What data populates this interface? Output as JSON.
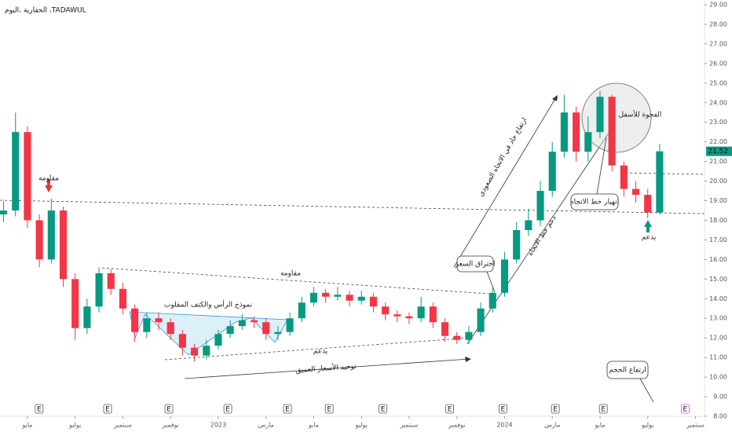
{
  "chart_data": {
    "type": "candlestick",
    "title": "الحفارية ،اليوم ،TADAWUL",
    "x": [
      3,
      3.5,
      4,
      4.5,
      5,
      5.5,
      6,
      6.5,
      7,
      7.5,
      8,
      8.5,
      9,
      9.5,
      10,
      10.5,
      11,
      11.5,
      12,
      12.5,
      13,
      13.5,
      14,
      14.5,
      15,
      15.5,
      16,
      16.5,
      17,
      17.5,
      18,
      18.5,
      19,
      19.5,
      20,
      20.5,
      21,
      21.5,
      22,
      22.5,
      23,
      23.5,
      24,
      24.5,
      25,
      25.5,
      26,
      26.5,
      27,
      27.5,
      28,
      28.5,
      29,
      29.5,
      30,
      30.5
    ],
    "open": [
      18.3,
      18.5,
      22.5,
      18,
      16,
      18.5,
      15,
      12.5,
      13.6,
      15.3,
      14.5,
      13.5,
      12.3,
      13,
      12.8,
      12.2,
      11.5,
      11.1,
      11.6,
      12.2,
      12.6,
      12.9,
      12.8,
      12.2,
      12.3,
      13,
      13.8,
      14.3,
      14.1,
      14.2,
      13.9,
      14.1,
      13.6,
      13.2,
      13.1,
      13,
      13.6,
      12.8,
      12.1,
      11.9,
      12.3,
      13.5,
      14.3,
      16,
      17.5,
      18,
      19.5,
      21.5,
      23.5,
      21.5,
      22.5,
      24.3,
      20.8,
      19.6,
      19.3,
      18.4
    ],
    "high": [
      19,
      23.5,
      22.8,
      18.3,
      19.1,
      18.7,
      15.3,
      14,
      15.6,
      15.5,
      14.8,
      13.7,
      13.3,
      13.3,
      13,
      12.4,
      11.7,
      11.9,
      12.4,
      12.9,
      13.2,
      13.1,
      13,
      12.6,
      13.3,
      14.1,
      14.6,
      14.5,
      14.6,
      14.4,
      14.4,
      14.3,
      13.8,
      13.4,
      13.3,
      14.1,
      13.8,
      13,
      12.3,
      12.6,
      13.8,
      14.6,
      16.4,
      17.9,
      18.6,
      20,
      22,
      24.4,
      23.8,
      23.3,
      24.6,
      24.4,
      21,
      20,
      19.6,
      21.9
    ],
    "low": [
      17.9,
      18.2,
      17.6,
      15.6,
      15.8,
      14.6,
      11.9,
      12.2,
      13.3,
      14.2,
      13.2,
      11.8,
      12,
      12.4,
      11.9,
      11.1,
      10.8,
      10.9,
      11.4,
      12,
      12.4,
      12.5,
      11.9,
      11.9,
      12.1,
      12.8,
      13.6,
      13.8,
      13.9,
      13.6,
      13.7,
      13.3,
      12.9,
      12.8,
      12.7,
      12.8,
      12.5,
      11.8,
      11.7,
      11.7,
      12.1,
      13.3,
      14.1,
      15.8,
      17.2,
      17.7,
      19.2,
      21.2,
      21,
      21,
      22.2,
      20.5,
      19.2,
      18.9,
      18.1,
      18.3
    ],
    "close": [
      18.5,
      22.5,
      18,
      16,
      18.5,
      15,
      12.5,
      13.6,
      15.3,
      14.5,
      13.5,
      12.3,
      13,
      12.8,
      12.2,
      11.5,
      11.1,
      11.6,
      12.2,
      12.6,
      12.9,
      12.8,
      12.2,
      12.3,
      13,
      13.8,
      14.3,
      14.1,
      14.2,
      13.9,
      14.1,
      13.6,
      13.2,
      13.1,
      13,
      13.6,
      12.8,
      12.1,
      11.9,
      12.3,
      13.5,
      14.3,
      16,
      17.5,
      18,
      19.5,
      21.5,
      23.5,
      21.5,
      22.5,
      24.3,
      20.8,
      19.6,
      19.3,
      18.4,
      21.52
    ],
    "up_color": "#089981",
    "down_color": "#f23645",
    "xlim": [
      2.85,
      32.38
    ],
    "xticks": [
      {
        "value": 4,
        "label": "مايو"
      },
      {
        "value": 6,
        "label": "يوليو"
      },
      {
        "value": 8,
        "label": "سبتمبر"
      },
      {
        "value": 10,
        "label": "نوفمبر"
      },
      {
        "value": 12,
        "label": "2023"
      },
      {
        "value": 14,
        "label": "مارس"
      },
      {
        "value": 16,
        "label": "مايو"
      },
      {
        "value": 18,
        "label": "يوليو"
      },
      {
        "value": 20,
        "label": "سبتمبر"
      },
      {
        "value": 22,
        "label": "نوفمبر"
      },
      {
        "value": 24,
        "label": "2024"
      },
      {
        "value": 26,
        "label": "مارس"
      },
      {
        "value": 28,
        "label": "مايو"
      },
      {
        "value": 30,
        "label": "يوليو"
      },
      {
        "value": 32,
        "label": "سبتمبر"
      }
    ],
    "ylim": [
      8,
      29.24
    ],
    "yticks": [
      {
        "value": 8,
        "label": "8.00"
      },
      {
        "value": 9,
        "label": "9.00"
      },
      {
        "value": 10,
        "label": "10.00"
      },
      {
        "value": 11,
        "label": "11.00"
      },
      {
        "value": 12,
        "label": "12.00"
      },
      {
        "value": 13,
        "label": "13.00"
      },
      {
        "value": 14,
        "label": "14.00"
      },
      {
        "value": 15,
        "label": "15.00"
      },
      {
        "value": 16,
        "label": "16.00"
      },
      {
        "value": 17,
        "label": "17.00"
      },
      {
        "value": 18,
        "label": "18.00"
      },
      {
        "value": 19,
        "label": "19.00"
      },
      {
        "value": 20,
        "label": "20.00"
      },
      {
        "value": 21,
        "label": "21.00"
      },
      {
        "value": 22,
        "label": "22.00"
      },
      {
        "value": 23,
        "label": "23.00"
      },
      {
        "value": 24,
        "label": "24.00"
      },
      {
        "value": 25,
        "label": "25.00"
      },
      {
        "value": 26,
        "label": "26.00"
      },
      {
        "value": 27,
        "label": "27.00"
      },
      {
        "value": 28,
        "label": "28.00"
      },
      {
        "value": 29,
        "label": "29.00"
      }
    ],
    "events": {
      "label": "E",
      "x": [
        4.49,
        7.36,
        9.93,
        12.4,
        14.9,
        16.65,
        18.9,
        21.7,
        23.93,
        26.13,
        28.14,
        31.57
      ]
    },
    "annotations": [
      "مقاومة",
      "مقاومة",
      "نموذج الرأس والكتف المقلوب",
      "يدعم",
      "توحيد الأسعار العميق",
      "اختراق السعر",
      "ارتفاع حاد في الاتجاه الصعودي",
      "دعم خط الاتجاه",
      "انهيار خط الاتجاه",
      "الفجوة للأسفل",
      "يدعم",
      "ارتفاع الحجم"
    ]
  }
}
